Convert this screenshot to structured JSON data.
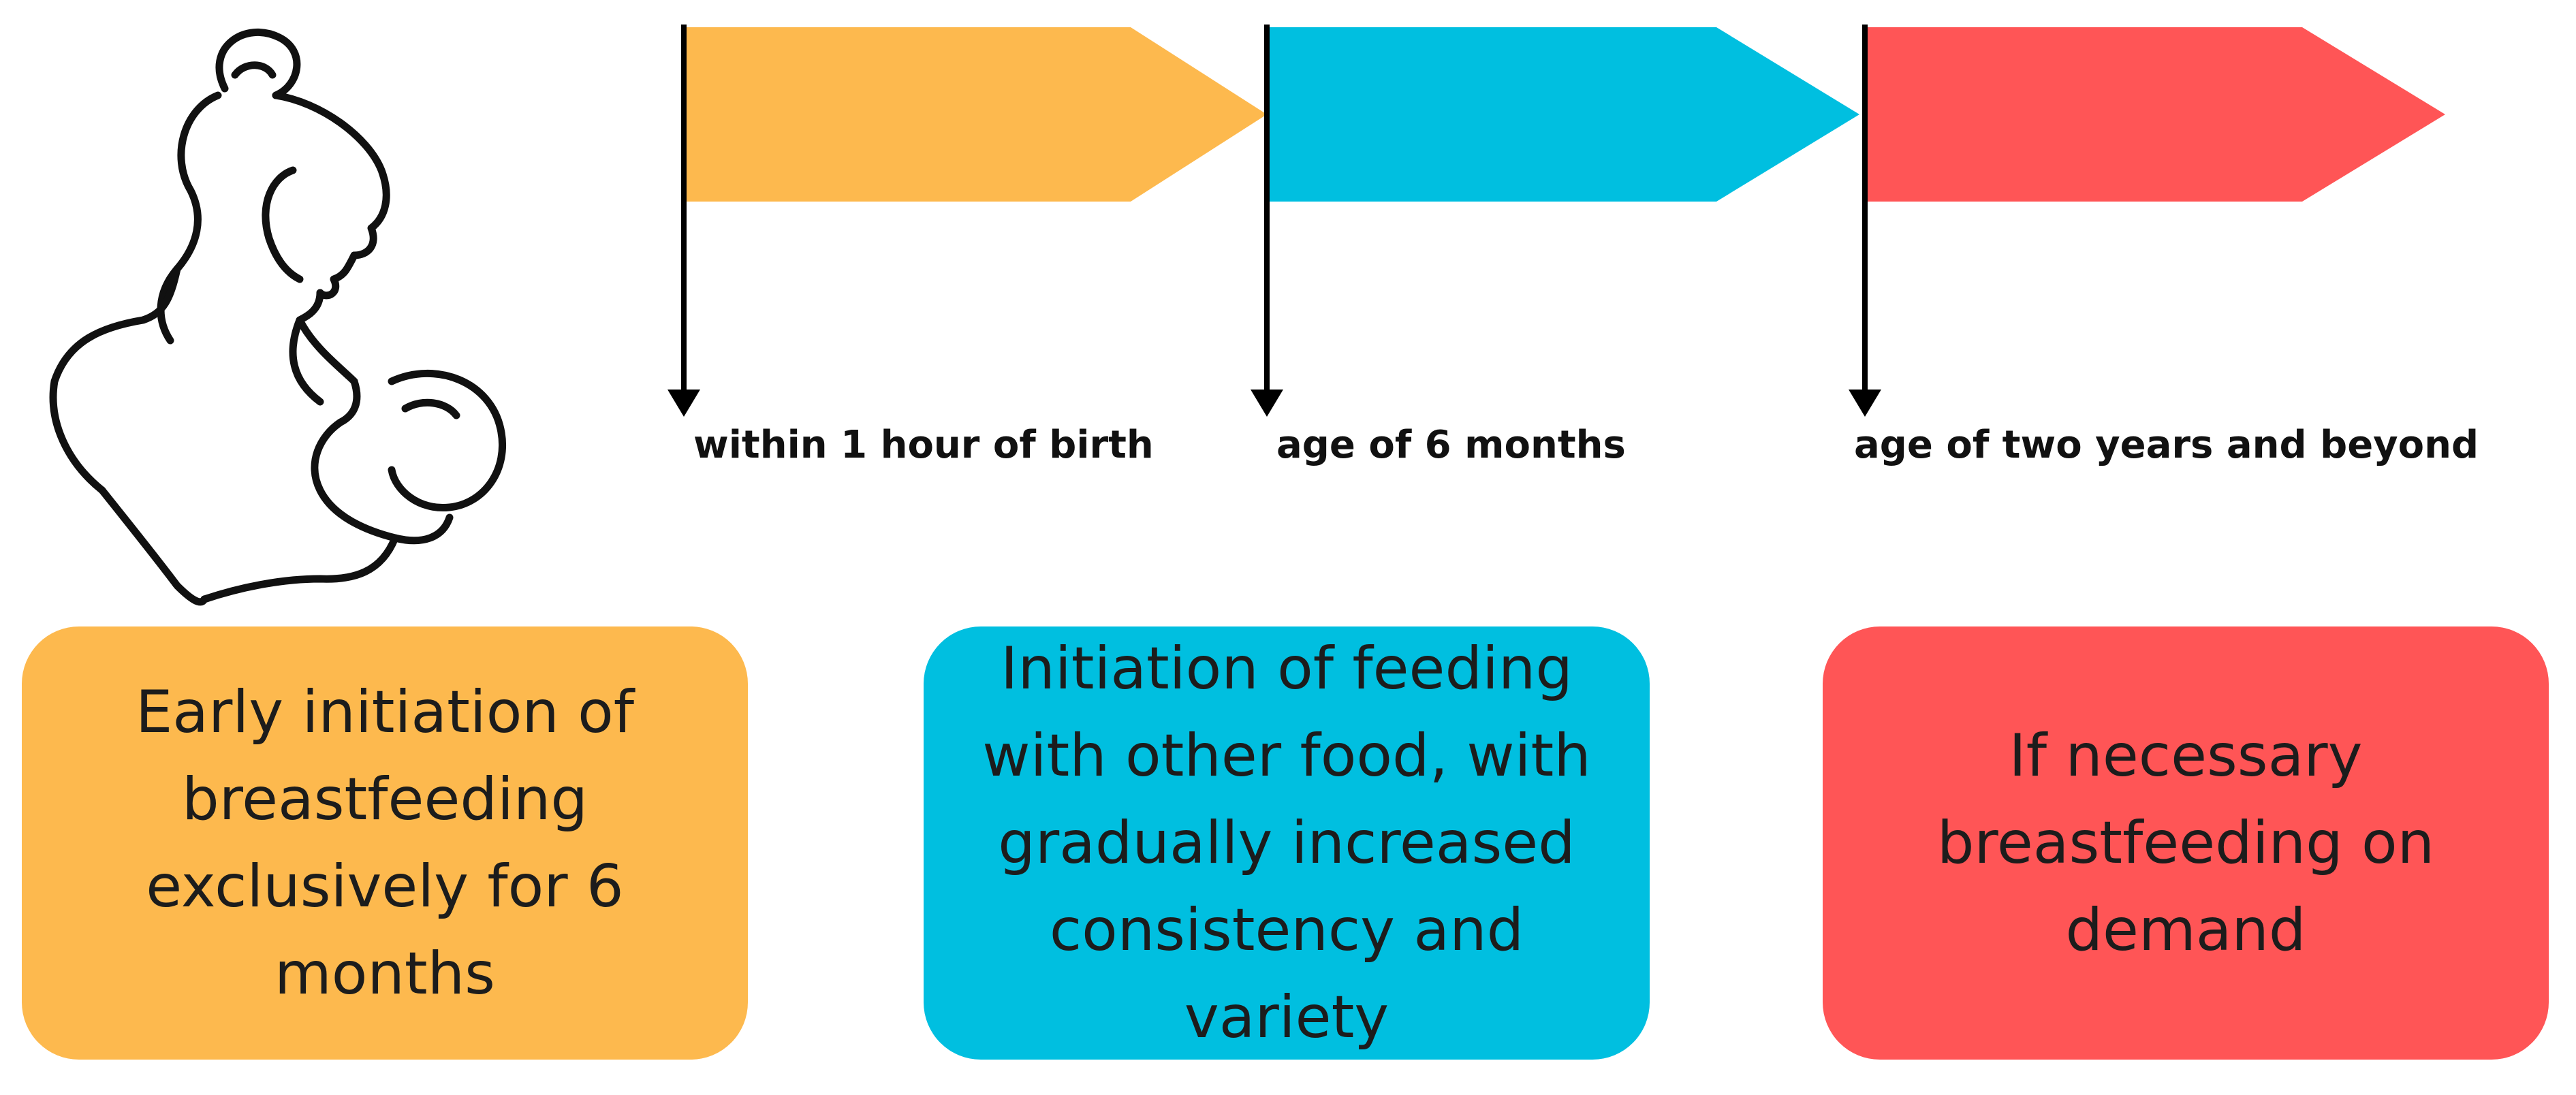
{
  "colors": {
    "stage1": "#FDB94E",
    "stage2": "#00BFE0",
    "stage3": "#FF5556",
    "line": "#000000",
    "text": "#1c1c1c"
  },
  "illustration": {
    "icon": "mother-breastfeeding-icon"
  },
  "milestones": [
    {
      "label": "within 1 hour of birth",
      "color_key": "stage1"
    },
    {
      "label": "age of 6 months",
      "color_key": "stage2"
    },
    {
      "label": "age of two years and beyond",
      "color_key": "stage3"
    }
  ],
  "boxes": [
    {
      "text": "Early initiation of\nbreastfeeding\nexclusively for 6\nmonths",
      "color_key": "stage1"
    },
    {
      "text": "Initiation of feeding\nwith other food, with\ngradually increased\nconsistency and\nvariety",
      "color_key": "stage2"
    },
    {
      "text": "If necessary\nbreastfeeding on\ndemand",
      "color_key": "stage3"
    }
  ]
}
